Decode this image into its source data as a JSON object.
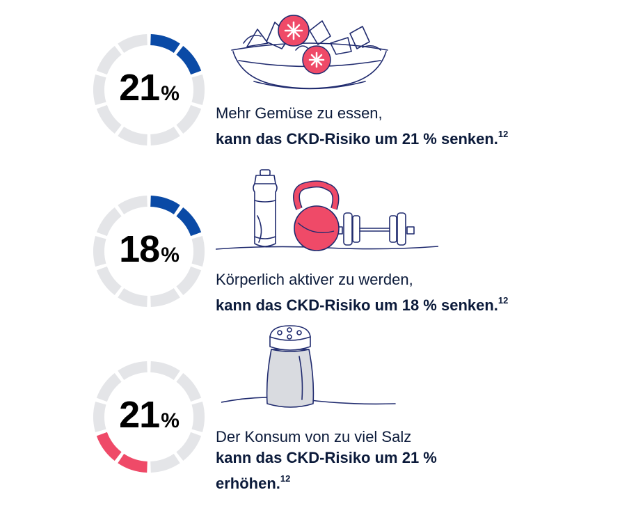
{
  "stats": [
    {
      "number": "21",
      "unit": "%",
      "fill_fraction": 0.21,
      "fill_color": "#0a4aa6",
      "line1": "Mehr Gemüse zu essen,",
      "bold": "kann das CKD-Risiko um 21 % senken.",
      "ref": "12",
      "illustration": "salad-bowl-icon"
    },
    {
      "number": "18",
      "unit": "%",
      "fill_fraction": 0.18,
      "fill_color": "#0a4aa6",
      "line1": "Körperlich aktiver zu werden,",
      "bold": "kann das CKD-Risiko um 18 % senken.",
      "ref": "12",
      "illustration": "fitness-equipment-icon"
    },
    {
      "number": "21",
      "unit": "%",
      "fill_fraction": 0.21,
      "fill_color": "#ef4a68",
      "line1": "Der Konsum von zu viel Salz",
      "bold_line1": "kann das CKD-Risiko um 21 %",
      "bold_line2": "erhöhen.",
      "ref": "12",
      "illustration": "salt-shaker-icon"
    }
  ],
  "colors": {
    "ring_background": "#e4e5e8",
    "text": "#0b1a3a",
    "accent_red": "#ef4a68",
    "line_blue": "#1f2a6e"
  }
}
